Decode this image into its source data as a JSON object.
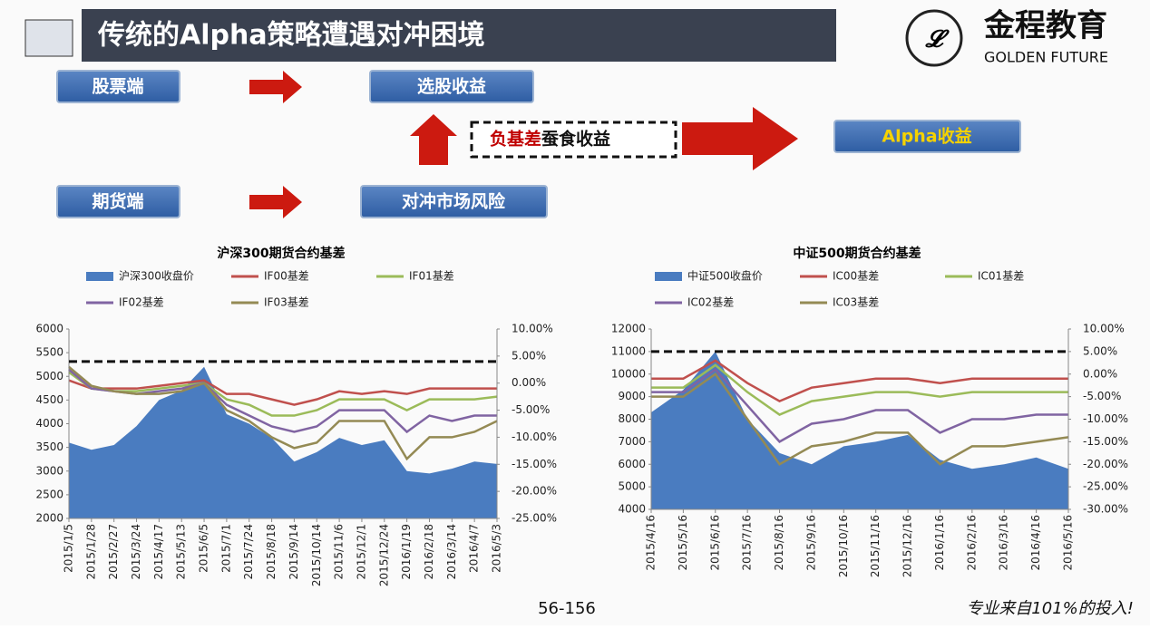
{
  "header": {
    "title": "传统的Alpha策略遭遇对冲困境",
    "brand": "金程教育",
    "brand_en": "GOLDEN FUTURE"
  },
  "diagram": {
    "stock_side": "股票端",
    "stock_return": "选股收益",
    "futures_side": "期货端",
    "hedge_risk": "对冲市场风险",
    "negative_basis": "负基差",
    "erodes_return": "蚕食收益",
    "alpha_return": "Alpha收益"
  },
  "chart_data": [
    {
      "type": "area_line",
      "title": "沪深300期货合约基差",
      "categories": [
        "2015/1/5",
        "2015/1/28",
        "2015/2/27",
        "2015/3/24",
        "2015/4/17",
        "2015/5/13",
        "2015/6/5",
        "2015/7/1",
        "2015/7/24",
        "2015/8/18",
        "2015/9/14",
        "2015/10/14",
        "2015/11/6",
        "2015/12/1",
        "2015/12/24",
        "2016/1/19",
        "2016/2/18",
        "2016/3/14",
        "2016/4/7",
        "2016/5/3"
      ],
      "series": [
        {
          "name": "沪深300收盘价",
          "color": "#4a7cc0",
          "values": [
            3600,
            3450,
            3550,
            3950,
            4500,
            4700,
            5200,
            4200,
            4000,
            3700,
            3200,
            3400,
            3700,
            3550,
            3650,
            3000,
            2950,
            3050,
            3200,
            3150
          ]
        },
        {
          "name": "IF00基差",
          "color": "#c0504d",
          "axis": "y2",
          "values": [
            0.5,
            -1,
            -1,
            -1,
            -0.5,
            0,
            0.5,
            -2,
            -2,
            -3,
            -4,
            -3,
            -1.5,
            -2,
            -1.5,
            -2,
            -1,
            -1,
            -1,
            -1
          ]
        },
        {
          "name": "IF01基差",
          "color": "#9bbb59",
          "axis": "y2",
          "values": [
            2,
            -1,
            -1.5,
            -1.5,
            -1,
            -0.5,
            0,
            -3,
            -4,
            -6,
            -6,
            -5,
            -3,
            -3,
            -3,
            -5,
            -3,
            -3,
            -3,
            -2.5
          ]
        },
        {
          "name": "IF02基差",
          "color": "#8064a2",
          "axis": "y2",
          "values": [
            2.5,
            -1,
            -1.5,
            -2,
            -1.5,
            -1,
            0,
            -4,
            -6,
            -8,
            -9,
            -8,
            -5,
            -5,
            -5,
            -9,
            -6,
            -7,
            -6,
            -6
          ]
        },
        {
          "name": "IF03基差",
          "color": "#948a54",
          "axis": "y2",
          "values": [
            3,
            -0.5,
            -1.5,
            -2,
            -2,
            -1.5,
            0,
            -5,
            -7,
            -10,
            -12,
            -11,
            -7,
            -7,
            -7,
            -14,
            -10,
            -10,
            -9,
            -7
          ]
        }
      ],
      "ylim": [
        2000,
        6000
      ],
      "yticks": [
        2000,
        2500,
        3000,
        3500,
        4000,
        4500,
        5000,
        5500,
        6000
      ],
      "y2lim": [
        -25,
        10
      ],
      "y2ticks": [
        {
          "value": -25,
          "label": "-25.00%"
        },
        {
          "value": -20,
          "label": "-20.00%"
        },
        {
          "value": -15,
          "label": "-15.00%"
        },
        {
          "value": -10,
          "label": "-10.00%"
        },
        {
          "value": -5,
          "label": "-5.00%"
        },
        {
          "value": 0,
          "label": "0.00%"
        },
        {
          "value": 5,
          "label": "5.00%"
        },
        {
          "value": 10,
          "label": "10.00%"
        }
      ],
      "reference_line": {
        "value": 4,
        "axis": "y2"
      }
    },
    {
      "type": "area_line",
      "title": "中证500期货合约基差",
      "categories": [
        "2015/4/16",
        "2015/5/16",
        "2015/6/16",
        "2015/7/16",
        "2015/8/16",
        "2015/9/16",
        "2015/10/16",
        "2015/11/16",
        "2015/12/16",
        "2016/1/16",
        "2016/2/16",
        "2016/3/16",
        "2016/4/16",
        "2016/5/16"
      ],
      "series": [
        {
          "name": "中证500收盘价",
          "color": "#4a7cc0",
          "values": [
            8300,
            9300,
            11000,
            8000,
            6500,
            6000,
            6800,
            7000,
            7300,
            6200,
            5800,
            6000,
            6300,
            5800
          ]
        },
        {
          "name": "IC00基差",
          "color": "#c0504d",
          "axis": "y2",
          "values": [
            -1,
            -1,
            3,
            -2,
            -6,
            -3,
            -2,
            -1,
            -1,
            -2,
            -1,
            -1,
            -1,
            -1
          ]
        },
        {
          "name": "IC01基差",
          "color": "#9bbb59",
          "axis": "y2",
          "values": [
            -3,
            -3,
            2,
            -4,
            -9,
            -6,
            -5,
            -4,
            -4,
            -5,
            -4,
            -4,
            -4,
            -4
          ]
        },
        {
          "name": "IC02基差",
          "color": "#8064a2",
          "axis": "y2",
          "values": [
            -4,
            -4,
            1,
            -7,
            -15,
            -11,
            -10,
            -8,
            -8,
            -13,
            -10,
            -10,
            -9,
            -9
          ]
        },
        {
          "name": "IC03基差",
          "color": "#948a54",
          "axis": "y2",
          "values": [
            -5,
            -5,
            0,
            -10,
            -20,
            -16,
            -15,
            -13,
            -13,
            -20,
            -16,
            -16,
            -15,
            -14
          ]
        }
      ],
      "ylim": [
        4000,
        12000
      ],
      "yticks": [
        4000,
        5000,
        6000,
        7000,
        8000,
        9000,
        10000,
        11000,
        12000
      ],
      "y2lim": [
        -30,
        10
      ],
      "y2ticks": [
        {
          "value": -30,
          "label": "-30.00%"
        },
        {
          "value": -25,
          "label": "-25.00%"
        },
        {
          "value": -20,
          "label": "-20.00%"
        },
        {
          "value": -15,
          "label": "-15.00%"
        },
        {
          "value": -10,
          "label": "-10.00%"
        },
        {
          "value": -5,
          "label": "-5.00%"
        },
        {
          "value": 0,
          "label": "0.00%"
        },
        {
          "value": 5,
          "label": "5.00%"
        },
        {
          "value": 10,
          "label": "10.00%"
        }
      ],
      "reference_line": {
        "value": 5,
        "axis": "y2"
      }
    }
  ],
  "footer": {
    "page": "56-156",
    "slogan": "专业来自101%的投入!"
  }
}
